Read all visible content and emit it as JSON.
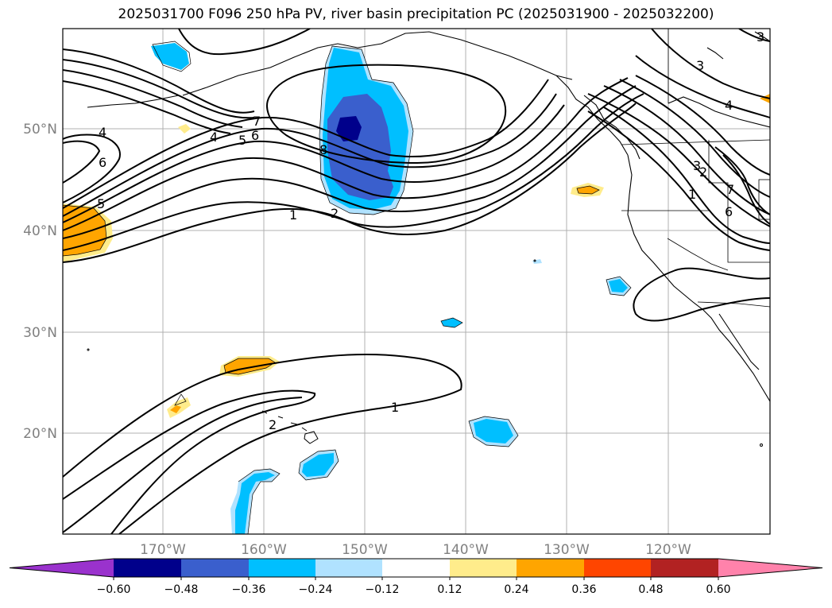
{
  "title": "2025031700 F096 250 hPa PV, river basin precipitation PC (2025031900 - 2025032200)",
  "lat_labels": [
    "50°N",
    "40°N",
    "30°N",
    "20°N"
  ],
  "lon_labels": [
    "170°W",
    "160°W",
    "150°W",
    "140°W",
    "130°W",
    "120°W"
  ],
  "contour_labels": [
    "1",
    "2",
    "4",
    "5",
    "6",
    "7",
    "8",
    "4",
    "5",
    "6",
    "1",
    "2",
    "1",
    "2",
    "3",
    "4",
    "3",
    "7",
    "6",
    "3"
  ],
  "colorbar": {
    "colors": [
      "#9a32cd",
      "#00008b",
      "#3a5fcd",
      "#00bfff",
      "#b0e2ff",
      "#ffffff",
      "#ffec8b",
      "#ffa500",
      "#ff4500",
      "#b22222",
      "#ff82ab"
    ],
    "ticks": [
      "−0.60",
      "−0.48",
      "−0.36",
      "−0.24",
      "−0.12",
      "0.12",
      "0.24",
      "0.36",
      "0.48",
      "0.60"
    ]
  }
}
